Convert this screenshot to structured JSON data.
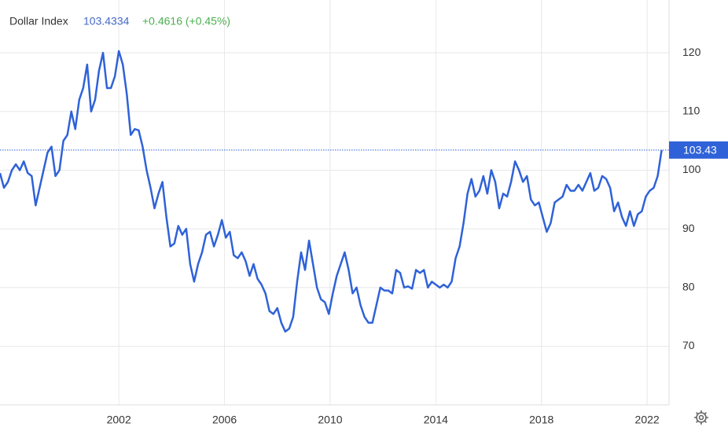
{
  "header": {
    "name": "Dollar Index",
    "price": "103.4334",
    "change": "+0.4616 (+0.45%)"
  },
  "chart_data": {
    "type": "line",
    "x": [
      1997.5,
      1997.65,
      1997.8,
      1997.95,
      1998.1,
      1998.25,
      1998.4,
      1998.55,
      1998.7,
      1998.85,
      1999,
      1999.15,
      1999.3,
      1999.45,
      1999.6,
      1999.75,
      1999.9,
      2000.05,
      2000.2,
      2000.35,
      2000.5,
      2000.65,
      2000.8,
      2000.95,
      2001.1,
      2001.25,
      2001.4,
      2001.55,
      2001.7,
      2001.85,
      2002,
      2002.15,
      2002.3,
      2002.45,
      2002.6,
      2002.75,
      2002.9,
      2003.05,
      2003.2,
      2003.35,
      2003.5,
      2003.65,
      2003.8,
      2003.95,
      2004.1,
      2004.25,
      2004.4,
      2004.55,
      2004.7,
      2004.85,
      2005,
      2005.15,
      2005.3,
      2005.45,
      2005.6,
      2005.75,
      2005.9,
      2006.05,
      2006.2,
      2006.35,
      2006.5,
      2006.65,
      2006.8,
      2006.95,
      2007.1,
      2007.25,
      2007.4,
      2007.55,
      2007.7,
      2007.85,
      2008,
      2008.15,
      2008.3,
      2008.45,
      2008.6,
      2008.75,
      2008.9,
      2009.05,
      2009.2,
      2009.35,
      2009.5,
      2009.65,
      2009.8,
      2009.95,
      2010.1,
      2010.25,
      2010.4,
      2010.55,
      2010.7,
      2010.85,
      2011,
      2011.15,
      2011.3,
      2011.45,
      2011.6,
      2011.75,
      2011.9,
      2012.05,
      2012.2,
      2012.35,
      2012.5,
      2012.65,
      2012.8,
      2012.95,
      2013.1,
      2013.25,
      2013.4,
      2013.55,
      2013.7,
      2013.85,
      2014,
      2014.15,
      2014.3,
      2014.45,
      2014.6,
      2014.75,
      2014.9,
      2015.05,
      2015.2,
      2015.35,
      2015.5,
      2015.65,
      2015.8,
      2015.95,
      2016.1,
      2016.25,
      2016.4,
      2016.55,
      2016.7,
      2016.85,
      2017,
      2017.15,
      2017.3,
      2017.45,
      2017.6,
      2017.75,
      2017.9,
      2018.05,
      2018.2,
      2018.35,
      2018.5,
      2018.65,
      2018.8,
      2018.95,
      2019.1,
      2019.25,
      2019.4,
      2019.55,
      2019.7,
      2019.85,
      2020,
      2020.15,
      2020.3,
      2020.45,
      2020.6,
      2020.75,
      2020.9,
      2021.05,
      2021.2,
      2021.35,
      2021.5,
      2021.65,
      2021.8,
      2021.95,
      2022.1,
      2022.25,
      2022.4,
      2022.55
    ],
    "series": [
      {
        "name": "Dollar Index",
        "color": "#2f62d8",
        "values": [
          99.5,
          97,
          98,
          100,
          101,
          100,
          101.5,
          99.5,
          99,
          94,
          97,
          100,
          103,
          104,
          99,
          100,
          105,
          106,
          110,
          107,
          112,
          114,
          118,
          110,
          112,
          117,
          120,
          114,
          114,
          116,
          120.3,
          118,
          113,
          106,
          107,
          106.8,
          104,
          100,
          97,
          93.5,
          96,
          98,
          92,
          87,
          87.5,
          90.5,
          89,
          90,
          84,
          81,
          84,
          86,
          89,
          89.5,
          87,
          89,
          91.5,
          88.5,
          89.5,
          85.5,
          85,
          86,
          84.5,
          82,
          84,
          81.5,
          80.5,
          79,
          76,
          75.5,
          76.5,
          74,
          72.5,
          73,
          75,
          81,
          86,
          83,
          88,
          84,
          80,
          78,
          77.5,
          75.5,
          79,
          82,
          84,
          86,
          83,
          79,
          80,
          77,
          75,
          74,
          74,
          77,
          80,
          79.5,
          79.5,
          79,
          83,
          82.5,
          80,
          80.2,
          79.8,
          83,
          82.5,
          83,
          80,
          81,
          80.5,
          80,
          80.5,
          80,
          81,
          85,
          87,
          91,
          96,
          98.5,
          95.5,
          96.5,
          99,
          96,
          100,
          98,
          93.5,
          96,
          95.5,
          98,
          101.5,
          100,
          98,
          99,
          95,
          94,
          94.5,
          92,
          89.5,
          91,
          94.5,
          95,
          95.5,
          97.5,
          96.5,
          96.5,
          97.5,
          96.5,
          98,
          99.5,
          96.5,
          97,
          99,
          98.5,
          97,
          93,
          94.5,
          92,
          90.5,
          93,
          90.5,
          92.5,
          93,
          95.5,
          96.5,
          97,
          99,
          103.4334
        ]
      }
    ],
    "reference_line": {
      "value": 103.4334,
      "label": "103.43",
      "color": "#2f62d8"
    },
    "xlim": [
      1997.5,
      2022.83
    ],
    "xticks": [
      2002,
      2006,
      2010,
      2014,
      2018,
      2022
    ],
    "ylim": [
      60,
      129
    ],
    "yticks": [
      70,
      80,
      90,
      100,
      110,
      120
    ],
    "grid": true
  }
}
